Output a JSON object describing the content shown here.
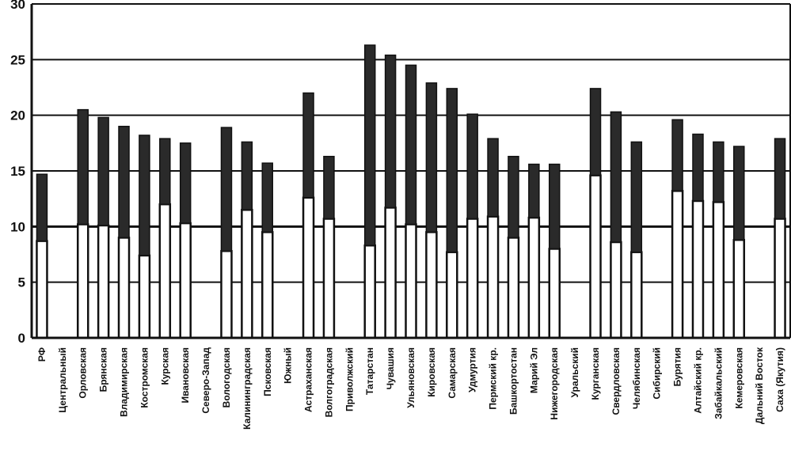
{
  "chart_data": {
    "type": "bar",
    "title": "",
    "xlabel": "",
    "ylabel": "",
    "ylim": [
      0,
      30
    ],
    "yticks": [
      0,
      5,
      10,
      15,
      20,
      25,
      30
    ],
    "grid": true,
    "categories": [
      "РФ",
      "Центральный",
      "Орловская",
      "Брянская",
      "Владимирская",
      "Костромская",
      "Курская",
      "Ивановская",
      "Северо-Запад",
      "Вологодская",
      "Калининградская",
      "Псковская",
      "Южный",
      "Астраханская",
      "Волгоградская",
      "Приволжский",
      "Татарстан",
      "Чувашия",
      "Ульяновская",
      "Кировская",
      "Самарская",
      "Удмуртия",
      "Пермский кр.",
      "Башкортостан",
      "Марий Эл",
      "Нижегородская",
      "Уральский",
      "Курганская",
      "Свердловская",
      "Челябинская",
      "Сибирский",
      "Бурятия",
      "Алтайский кр.",
      "Забайкальский",
      "Кемеровская",
      "Дальний Восток",
      "Саха (Якутия)"
    ],
    "series": [
      {
        "values": [
          8.7,
          null,
          10.2,
          10.1,
          9.0,
          7.4,
          12.0,
          10.3,
          null,
          7.8,
          11.5,
          9.5,
          null,
          12.6,
          10.7,
          null,
          8.3,
          11.7,
          10.2,
          9.5,
          7.7,
          10.7,
          10.9,
          9.0,
          10.8,
          8.0,
          null,
          14.6,
          8.6,
          7.7,
          null,
          13.2,
          12.3,
          12.2,
          8.8,
          null,
          10.7
        ]
      },
      {
        "values": [
          14.7,
          null,
          20.5,
          19.8,
          19.0,
          18.2,
          17.9,
          17.5,
          null,
          18.9,
          17.6,
          15.7,
          null,
          22.0,
          16.3,
          null,
          26.3,
          25.4,
          24.5,
          22.9,
          22.4,
          20.1,
          17.9,
          16.3,
          15.6,
          15.6,
          null,
          22.4,
          20.3,
          17.6,
          null,
          19.6,
          18.3,
          17.6,
          17.2,
          null,
          17.9
        ]
      }
    ]
  }
}
